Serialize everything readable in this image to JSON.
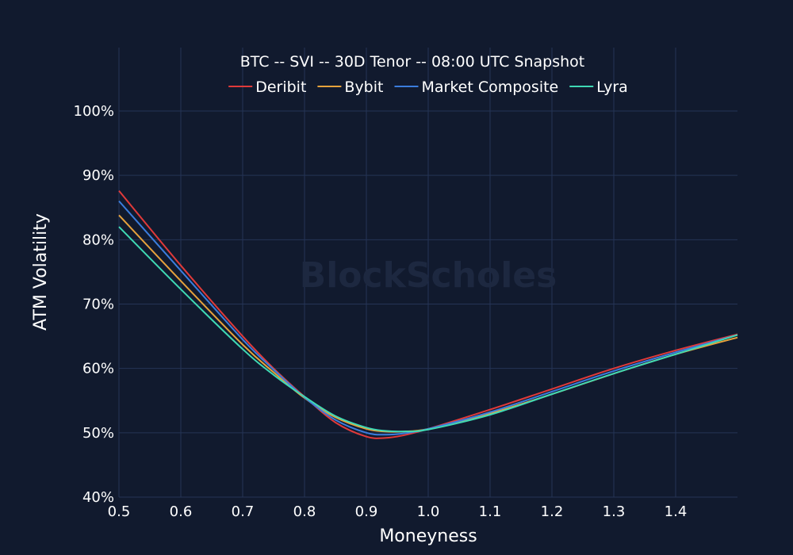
{
  "chart_data": {
    "type": "line",
    "title": "BTC -- SVI -- 30D Tenor -- 08:00 UTC Snapshot",
    "xlabel": "Moneyness",
    "ylabel": "ATM Volatility",
    "watermark": "BlockScholes",
    "xlim": [
      0.5,
      1.5
    ],
    "ylim": [
      40,
      100
    ],
    "x_ticks": [
      0.5,
      0.6,
      0.7,
      0.8,
      0.9,
      1.0,
      1.1,
      1.2,
      1.3,
      1.4
    ],
    "x_tick_labels": [
      "0.5",
      "0.6",
      "0.7",
      "0.8",
      "0.9",
      "1.0",
      "1.1",
      "1.2",
      "1.3",
      "1.4"
    ],
    "y_ticks": [
      40,
      50,
      60,
      70,
      80,
      90,
      100
    ],
    "y_tick_labels": [
      "40%",
      "50%",
      "60%",
      "70%",
      "80%",
      "90%",
      "100%"
    ],
    "grid": true,
    "legend_position": "top-center",
    "x": [
      0.5,
      0.6,
      0.7,
      0.75,
      0.8,
      0.85,
      0.9,
      0.93,
      0.96,
      1.0,
      1.1,
      1.2,
      1.3,
      1.4,
      1.5
    ],
    "series": [
      {
        "name": "Deribit",
        "color": "#e03a3a",
        "values": [
          87.6,
          76.0,
          65.0,
          60.0,
          55.6,
          51.6,
          49.4,
          49.2,
          49.6,
          50.6,
          53.6,
          56.8,
          60.0,
          62.8,
          65.3
        ]
      },
      {
        "name": "Bybit",
        "color": "#e6a23c",
        "values": [
          83.8,
          73.6,
          63.7,
          59.4,
          55.4,
          52.4,
          50.6,
          50.2,
          50.2,
          50.6,
          53.0,
          56.0,
          59.2,
          62.2,
          64.8
        ]
      },
      {
        "name": "Market Composite",
        "color": "#3b7ddd",
        "values": [
          86.0,
          75.2,
          64.5,
          59.8,
          55.5,
          52.0,
          50.0,
          49.7,
          49.9,
          50.6,
          53.2,
          56.4,
          59.6,
          62.5,
          65.2
        ]
      },
      {
        "name": "Lyra",
        "color": "#3fd9b4",
        "values": [
          82.0,
          72.3,
          63.0,
          59.0,
          55.6,
          52.6,
          50.8,
          50.3,
          50.2,
          50.5,
          52.8,
          56.0,
          59.2,
          62.2,
          65.2
        ]
      }
    ]
  }
}
